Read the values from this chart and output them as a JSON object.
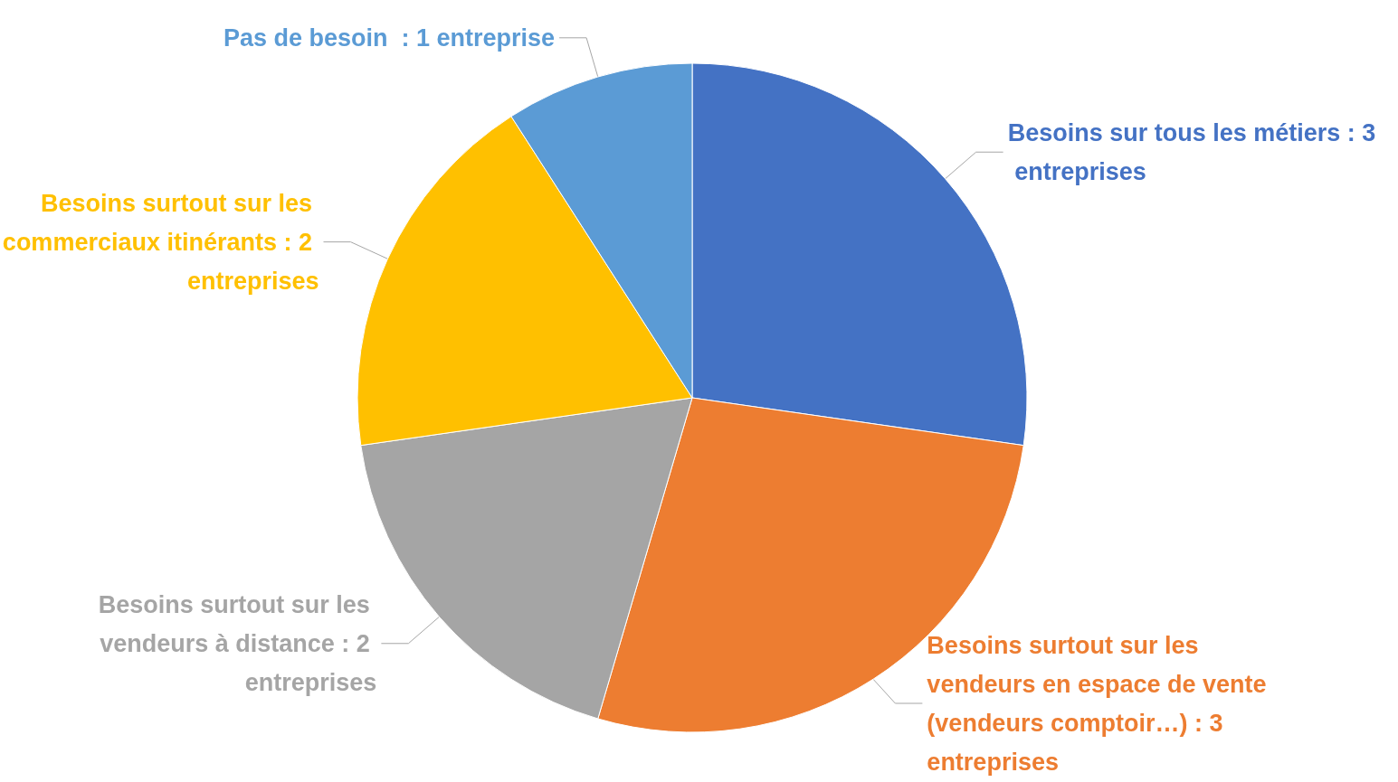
{
  "chart_data": {
    "type": "pie",
    "categories": [
      "Besoins sur tous les métiers",
      "Besoins surtout sur les vendeurs en espace de vente (vendeurs comptoir…)",
      "Besoins surtout sur les vendeurs à distance",
      "Besoins surtout sur les commerciaux itinérants",
      "Pas de besoin "
    ],
    "values": [
      3,
      3,
      2,
      2,
      1
    ],
    "value_labels": [
      "3 entreprises",
      "3 entreprises",
      "2 entreprises",
      "2 entreprises",
      "1 entreprise"
    ],
    "colors": [
      "#4472c4",
      "#ed7d31",
      "#a5a5a5",
      "#ffc000",
      "#5b9bd5"
    ],
    "legend": false
  }
}
